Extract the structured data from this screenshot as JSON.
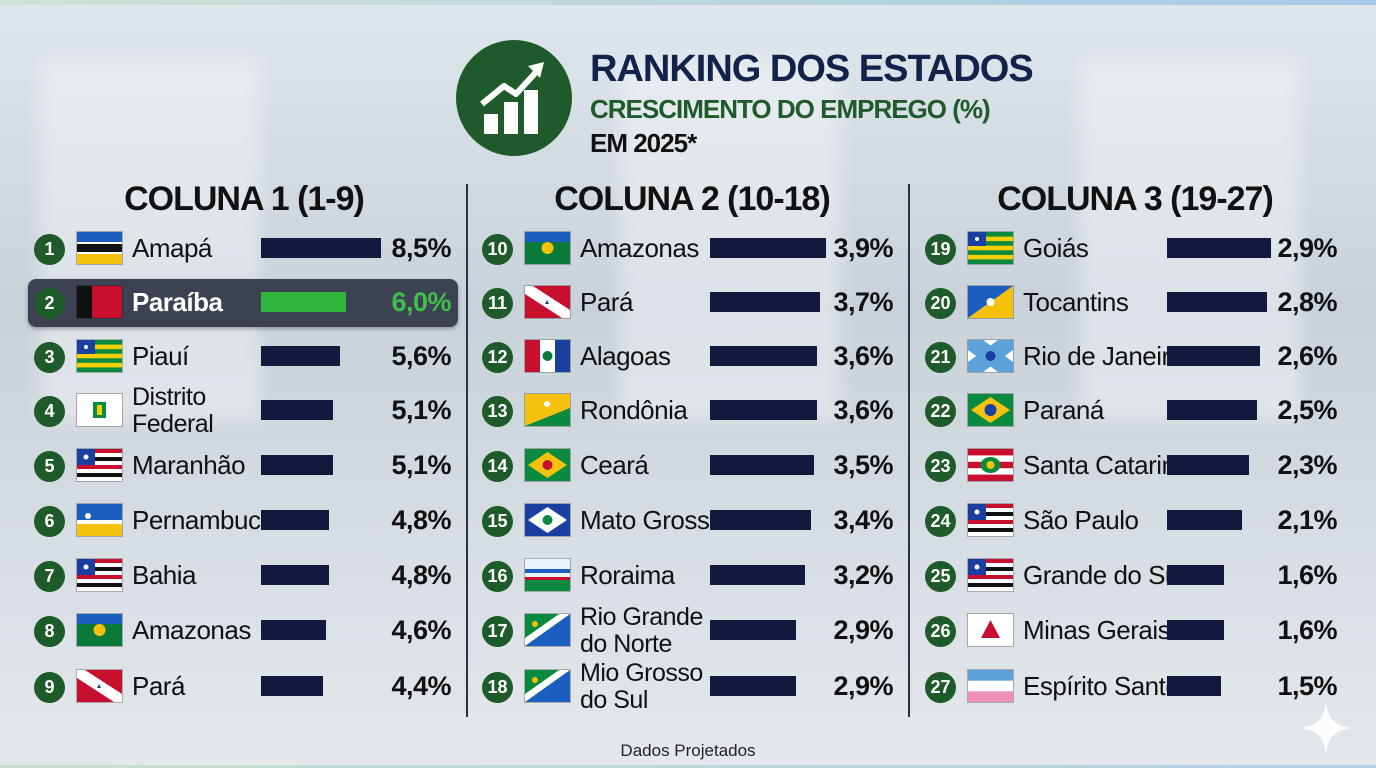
{
  "header": {
    "title": "RANKING DOS ESTADOS",
    "subtitle": "CRESCIMENTO DO EMPREGO (%)",
    "period": "EM 2025*",
    "logo_icon": "growth-chart-icon"
  },
  "footer": {
    "note": "Dados Projetados"
  },
  "colors": {
    "bar": "#13193d",
    "highlight_bar": "#30b53c",
    "badge": "#1e5a2a",
    "highlight_row": "#3d4252"
  },
  "chart_data": [
    {
      "type": "bar",
      "orientation": "horizontal",
      "title": "COLUNA 1 (1-9)",
      "highlight": "Paraíba",
      "rows": [
        {
          "rank": "1",
          "state": "Amapá",
          "value": 8.5,
          "label": "8,5%"
        },
        {
          "rank": "2",
          "state": "Paraíba",
          "value": 6.0,
          "label": "6,0%"
        },
        {
          "rank": "3",
          "state": "Piauí",
          "value": 5.6,
          "label": "5,6%"
        },
        {
          "rank": "4",
          "state": "Distrito\nFederal",
          "value": 5.1,
          "label": "5,1%"
        },
        {
          "rank": "5",
          "state": "Maranhão",
          "value": 5.1,
          "label": "5,1%"
        },
        {
          "rank": "6",
          "state": "Pernambuco",
          "value": 4.8,
          "label": "4,8%"
        },
        {
          "rank": "7",
          "state": "Bahia",
          "value": 4.8,
          "label": "4,8%"
        },
        {
          "rank": "8",
          "state": "Amazonas",
          "value": 4.6,
          "label": "4,6%"
        },
        {
          "rank": "9",
          "state": "Pará",
          "value": 4.4,
          "label": "4,4%"
        }
      ]
    },
    {
      "type": "bar",
      "orientation": "horizontal",
      "title": "COLUNA 2 (10-18)",
      "rows": [
        {
          "rank": "10",
          "state": "Amazonas",
          "value": 3.9,
          "label": "3,9%"
        },
        {
          "rank": "11",
          "state": "Pará",
          "value": 3.7,
          "label": "3,7%"
        },
        {
          "rank": "12",
          "state": "Alagoas",
          "value": 3.6,
          "label": "3,6%"
        },
        {
          "rank": "13",
          "state": "Rondônia",
          "value": 3.6,
          "label": "3,6%"
        },
        {
          "rank": "14",
          "state": "Ceará",
          "value": 3.5,
          "label": "3,5%"
        },
        {
          "rank": "15",
          "state": "Mato Grosso",
          "value": 3.4,
          "label": "3,4%"
        },
        {
          "rank": "16",
          "state": "Roraima",
          "value": 3.2,
          "label": "3,2%"
        },
        {
          "rank": "17",
          "state": "Rio Grande\ndo Norte",
          "value": 2.9,
          "label": "2,9%"
        },
        {
          "rank": "18",
          "state": "Mio Grosso\ndo Sul",
          "value": 2.9,
          "label": "2,9%"
        }
      ]
    },
    {
      "type": "bar",
      "orientation": "horizontal",
      "title": "COLUNA 3 (19-27)",
      "rows": [
        {
          "rank": "19",
          "state": "Goiás",
          "value": 2.9,
          "label": "2,9%"
        },
        {
          "rank": "20",
          "state": "Tocantins",
          "value": 2.8,
          "label": "2,8%"
        },
        {
          "rank": "21",
          "state": "Rio de Janeiro",
          "value": 2.6,
          "label": "2,6%"
        },
        {
          "rank": "22",
          "state": "Paraná",
          "value": 2.5,
          "label": "2,5%"
        },
        {
          "rank": "23",
          "state": "Santa Catarina",
          "value": 2.3,
          "label": "2,3%"
        },
        {
          "rank": "24",
          "state": "São Paulo",
          "value": 2.1,
          "label": "2,1%"
        },
        {
          "rank": "25",
          "state": "Grande do Sul",
          "value": 1.6,
          "label": "1,6%"
        },
        {
          "rank": "26",
          "state": "Minas Gerais",
          "value": 1.6,
          "label": "1,6%"
        },
        {
          "rank": "27",
          "state": "Espírito Santo",
          "value": 1.5,
          "label": "1,5%"
        }
      ]
    }
  ]
}
